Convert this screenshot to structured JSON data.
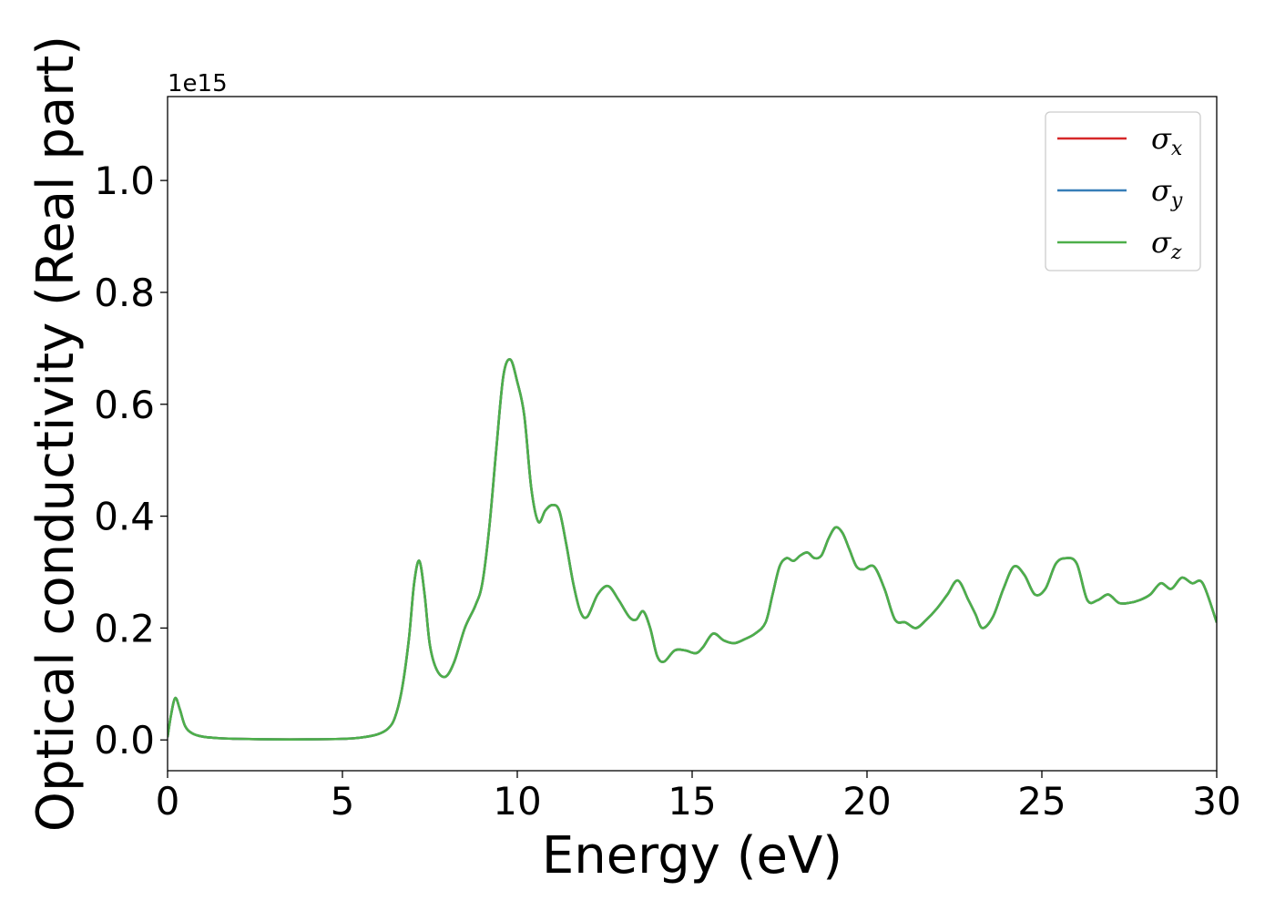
{
  "chart_data": {
    "type": "line",
    "title": "",
    "xlabel": "Energy (eV)",
    "ylabel": "Optical conductivity (Real part)",
    "y_offset_label": "1e15",
    "xlim": [
      0,
      30
    ],
    "ylim": [
      -0.055,
      1.15
    ],
    "xticks": [
      0,
      5,
      10,
      15,
      20,
      25,
      30
    ],
    "xtick_labels": [
      "0",
      "5",
      "10",
      "15",
      "20",
      "25",
      "30"
    ],
    "yticks": [
      0.0,
      0.2,
      0.4,
      0.6,
      0.8,
      1.0
    ],
    "ytick_labels": [
      "0.0",
      "0.2",
      "0.4",
      "0.6",
      "0.8",
      "1.0"
    ],
    "grid": false,
    "legend_position": "upper-right",
    "series": [
      {
        "name": "σx",
        "color": "#d62728",
        "values_same_as": "σz"
      },
      {
        "name": "σy",
        "color": "#377eb8",
        "values_same_as": "σz"
      },
      {
        "name": "σz",
        "color": "#4daf4a",
        "x": [
          0,
          0.1,
          0.22,
          0.35,
          0.5,
          0.7,
          1.0,
          1.5,
          2,
          3,
          4,
          5,
          5.5,
          6,
          6.3,
          6.5,
          6.7,
          6.9,
          7.05,
          7.2,
          7.35,
          7.5,
          7.7,
          7.95,
          8.2,
          8.5,
          8.8,
          9.0,
          9.2,
          9.4,
          9.6,
          9.8,
          10.0,
          10.2,
          10.4,
          10.6,
          10.8,
          11.0,
          11.2,
          11.4,
          11.6,
          11.8,
          12.0,
          12.3,
          12.6,
          12.9,
          13.2,
          13.4,
          13.6,
          13.8,
          14.0,
          14.2,
          14.5,
          14.8,
          15.1,
          15.3,
          15.6,
          15.9,
          16.2,
          16.5,
          16.8,
          17.1,
          17.3,
          17.5,
          17.7,
          17.9,
          18.1,
          18.3,
          18.5,
          18.7,
          18.9,
          19.1,
          19.3,
          19.5,
          19.7,
          19.9,
          20.2,
          20.5,
          20.8,
          21.1,
          21.4,
          21.7,
          22.0,
          22.3,
          22.6,
          22.9,
          23.1,
          23.3,
          23.6,
          23.9,
          24.2,
          24.5,
          24.8,
          25.1,
          25.4,
          25.7,
          26.0,
          26.3,
          26.6,
          26.9,
          27.2,
          27.5,
          27.8,
          28.1,
          28.4,
          28.7,
          29.0,
          29.3,
          29.6,
          30.0
        ],
        "values": [
          0.005,
          0.045,
          0.075,
          0.055,
          0.025,
          0.012,
          0.006,
          0.003,
          0.002,
          0.001,
          0.001,
          0.002,
          0.004,
          0.01,
          0.02,
          0.04,
          0.09,
          0.18,
          0.28,
          0.32,
          0.26,
          0.17,
          0.125,
          0.113,
          0.14,
          0.2,
          0.24,
          0.28,
          0.38,
          0.52,
          0.65,
          0.68,
          0.64,
          0.58,
          0.45,
          0.39,
          0.41,
          0.42,
          0.41,
          0.35,
          0.28,
          0.23,
          0.22,
          0.26,
          0.275,
          0.25,
          0.22,
          0.215,
          0.23,
          0.2,
          0.15,
          0.14,
          0.16,
          0.16,
          0.155,
          0.165,
          0.19,
          0.178,
          0.173,
          0.18,
          0.19,
          0.21,
          0.26,
          0.31,
          0.325,
          0.32,
          0.33,
          0.335,
          0.325,
          0.33,
          0.36,
          0.38,
          0.37,
          0.34,
          0.31,
          0.305,
          0.31,
          0.27,
          0.215,
          0.21,
          0.2,
          0.215,
          0.235,
          0.26,
          0.285,
          0.25,
          0.225,
          0.2,
          0.22,
          0.27,
          0.31,
          0.295,
          0.26,
          0.27,
          0.315,
          0.325,
          0.315,
          0.25,
          0.25,
          0.26,
          0.245,
          0.245,
          0.25,
          0.26,
          0.28,
          0.27,
          0.29,
          0.28,
          0.28,
          0.21
        ]
      }
    ]
  }
}
